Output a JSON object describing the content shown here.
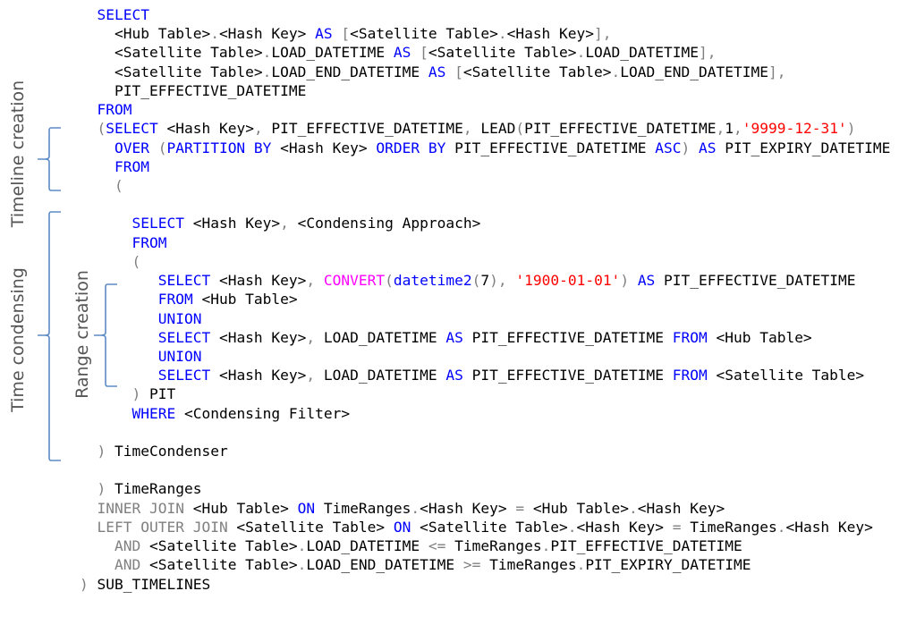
{
  "labels": {
    "timeline": "Timeline creation",
    "condensing": "Time condensing",
    "range": "Range creation"
  },
  "colors": {
    "keyword": "#0000ff",
    "punct": "#808080",
    "string": "#ff0000",
    "function": "#ff00ff",
    "bracket": "#5b8ac6"
  },
  "code_lines": [
    [
      [
        "t",
        "  "
      ],
      [
        "k",
        "SELECT"
      ]
    ],
    [
      [
        "t",
        "    <Hub Table>"
      ],
      [
        "g",
        "."
      ],
      [
        "t",
        "<Hash Key> "
      ],
      [
        "k",
        "AS"
      ],
      [
        "t",
        " "
      ],
      [
        "g",
        "["
      ],
      [
        "t",
        "<Satellite Table>"
      ],
      [
        "g",
        "."
      ],
      [
        "t",
        "<Hash Key>"
      ],
      [
        "g",
        "],"
      ]
    ],
    [
      [
        "t",
        "    <Satellite Table>"
      ],
      [
        "g",
        "."
      ],
      [
        "t",
        "LOAD_DATETIME "
      ],
      [
        "k",
        "AS"
      ],
      [
        "t",
        " "
      ],
      [
        "g",
        "["
      ],
      [
        "t",
        "<Satellite Table>"
      ],
      [
        "g",
        "."
      ],
      [
        "t",
        "LOAD_DATETIME"
      ],
      [
        "g",
        "],"
      ]
    ],
    [
      [
        "t",
        "    <Satellite Table>"
      ],
      [
        "g",
        "."
      ],
      [
        "t",
        "LOAD_END_DATETIME "
      ],
      [
        "k",
        "AS"
      ],
      [
        "t",
        " "
      ],
      [
        "g",
        "["
      ],
      [
        "t",
        "<Satellite Table>"
      ],
      [
        "g",
        "."
      ],
      [
        "t",
        "LOAD_END_DATETIME"
      ],
      [
        "g",
        "],"
      ]
    ],
    [
      [
        "t",
        "    PIT_EFFECTIVE_DATETIME"
      ]
    ],
    [
      [
        "t",
        "  "
      ],
      [
        "k",
        "FROM"
      ]
    ],
    [
      [
        "t",
        "  "
      ],
      [
        "g",
        "("
      ],
      [
        "k",
        "SELECT"
      ],
      [
        "t",
        " <Hash Key>"
      ],
      [
        "g",
        ","
      ],
      [
        "t",
        " PIT_EFFECTIVE_DATETIME"
      ],
      [
        "g",
        ","
      ],
      [
        "t",
        " LEAD"
      ],
      [
        "g",
        "("
      ],
      [
        "t",
        "PIT_EFFECTIVE_DATETIME"
      ],
      [
        "g",
        ","
      ],
      [
        "t",
        "1"
      ],
      [
        "g",
        ","
      ],
      [
        "s",
        "'9999-12-31'"
      ],
      [
        "g",
        ")"
      ]
    ],
    [
      [
        "t",
        "    "
      ],
      [
        "k",
        "OVER"
      ],
      [
        "t",
        " "
      ],
      [
        "g",
        "("
      ],
      [
        "k",
        "PARTITION BY"
      ],
      [
        "t",
        " <Hash Key> "
      ],
      [
        "k",
        "ORDER BY"
      ],
      [
        "t",
        " PIT_EFFECTIVE_DATETIME "
      ],
      [
        "k",
        "ASC"
      ],
      [
        "g",
        ")"
      ],
      [
        "t",
        " "
      ],
      [
        "k",
        "AS"
      ],
      [
        "t",
        " PIT_EXPIRY_DATETIME"
      ]
    ],
    [
      [
        "t",
        "    "
      ],
      [
        "k",
        "FROM"
      ]
    ],
    [
      [
        "t",
        "    "
      ],
      [
        "g",
        "("
      ]
    ],
    [],
    [
      [
        "t",
        "      "
      ],
      [
        "k",
        "SELECT"
      ],
      [
        "t",
        " <Hash Key>"
      ],
      [
        "g",
        ","
      ],
      [
        "t",
        " <Condensing Approach>"
      ]
    ],
    [
      [
        "t",
        "      "
      ],
      [
        "k",
        "FROM"
      ]
    ],
    [
      [
        "t",
        "      "
      ],
      [
        "g",
        "("
      ]
    ],
    [
      [
        "t",
        "         "
      ],
      [
        "k",
        "SELECT"
      ],
      [
        "t",
        " <Hash Key>"
      ],
      [
        "g",
        ","
      ],
      [
        "t",
        " "
      ],
      [
        "m",
        "CONVERT"
      ],
      [
        "g",
        "("
      ],
      [
        "k",
        "datetime2"
      ],
      [
        "g",
        "("
      ],
      [
        "t",
        "7"
      ],
      [
        "g",
        "),"
      ],
      [
        "t",
        " "
      ],
      [
        "s",
        "'1900-01-01'"
      ],
      [
        "g",
        ")"
      ],
      [
        "t",
        " "
      ],
      [
        "k",
        "AS"
      ],
      [
        "t",
        " PIT_EFFECTIVE_DATETIME"
      ]
    ],
    [
      [
        "t",
        "         "
      ],
      [
        "k",
        "FROM"
      ],
      [
        "t",
        " <Hub Table>"
      ]
    ],
    [
      [
        "t",
        "         "
      ],
      [
        "k",
        "UNION"
      ]
    ],
    [
      [
        "t",
        "         "
      ],
      [
        "k",
        "SELECT"
      ],
      [
        "t",
        " <Hash Key>"
      ],
      [
        "g",
        ","
      ],
      [
        "t",
        " LOAD_DATETIME "
      ],
      [
        "k",
        "AS"
      ],
      [
        "t",
        " PIT_EFFECTIVE_DATETIME "
      ],
      [
        "k",
        "FROM"
      ],
      [
        "t",
        " <Hub Table>"
      ]
    ],
    [
      [
        "t",
        "         "
      ],
      [
        "k",
        "UNION"
      ]
    ],
    [
      [
        "t",
        "         "
      ],
      [
        "k",
        "SELECT"
      ],
      [
        "t",
        " <Hash Key>"
      ],
      [
        "g",
        ","
      ],
      [
        "t",
        " LOAD_DATETIME "
      ],
      [
        "k",
        "AS"
      ],
      [
        "t",
        " PIT_EFFECTIVE_DATETIME "
      ],
      [
        "k",
        "FROM"
      ],
      [
        "t",
        " <Satellite Table>"
      ]
    ],
    [
      [
        "t",
        "      "
      ],
      [
        "g",
        ")"
      ],
      [
        "t",
        " PIT"
      ]
    ],
    [
      [
        "t",
        "      "
      ],
      [
        "k",
        "WHERE"
      ],
      [
        "t",
        " <Condensing Filter>"
      ]
    ],
    [],
    [
      [
        "t",
        "  "
      ],
      [
        "g",
        ")"
      ],
      [
        "t",
        " TimeCondenser"
      ]
    ],
    [],
    [
      [
        "t",
        "  "
      ],
      [
        "g",
        ")"
      ],
      [
        "t",
        " TimeRanges"
      ]
    ],
    [
      [
        "t",
        "  "
      ],
      [
        "g",
        "INNER JOIN"
      ],
      [
        "t",
        " <Hub Table> "
      ],
      [
        "k",
        "ON"
      ],
      [
        "t",
        " TimeRanges"
      ],
      [
        "g",
        "."
      ],
      [
        "t",
        "<Hash Key> "
      ],
      [
        "g",
        "="
      ],
      [
        "t",
        " <Hub Table>"
      ],
      [
        "g",
        "."
      ],
      [
        "t",
        "<Hash Key>"
      ]
    ],
    [
      [
        "t",
        "  "
      ],
      [
        "g",
        "LEFT OUTER JOIN"
      ],
      [
        "t",
        " <Satellite Table> "
      ],
      [
        "k",
        "ON"
      ],
      [
        "t",
        " <Satellite Table>"
      ],
      [
        "g",
        "."
      ],
      [
        "t",
        "<Hash Key> "
      ],
      [
        "g",
        "="
      ],
      [
        "t",
        " TimeRanges"
      ],
      [
        "g",
        "."
      ],
      [
        "t",
        "<Hash Key>"
      ]
    ],
    [
      [
        "t",
        "    "
      ],
      [
        "g",
        "AND"
      ],
      [
        "t",
        " <Satellite Table>"
      ],
      [
        "g",
        "."
      ],
      [
        "t",
        "LOAD_DATETIME "
      ],
      [
        "g",
        "<="
      ],
      [
        "t",
        " TimeRanges"
      ],
      [
        "g",
        "."
      ],
      [
        "t",
        "PIT_EFFECTIVE_DATETIME"
      ]
    ],
    [
      [
        "t",
        "    "
      ],
      [
        "g",
        "AND"
      ],
      [
        "t",
        " <Satellite Table>"
      ],
      [
        "g",
        "."
      ],
      [
        "t",
        "LOAD_END_DATETIME "
      ],
      [
        "g",
        ">="
      ],
      [
        "t",
        " TimeRanges"
      ],
      [
        "g",
        "."
      ],
      [
        "t",
        "PIT_EXPIRY_DATETIME"
      ]
    ],
    [
      [
        "g",
        ")"
      ],
      [
        "t",
        " SUB_TIMELINES"
      ]
    ]
  ]
}
